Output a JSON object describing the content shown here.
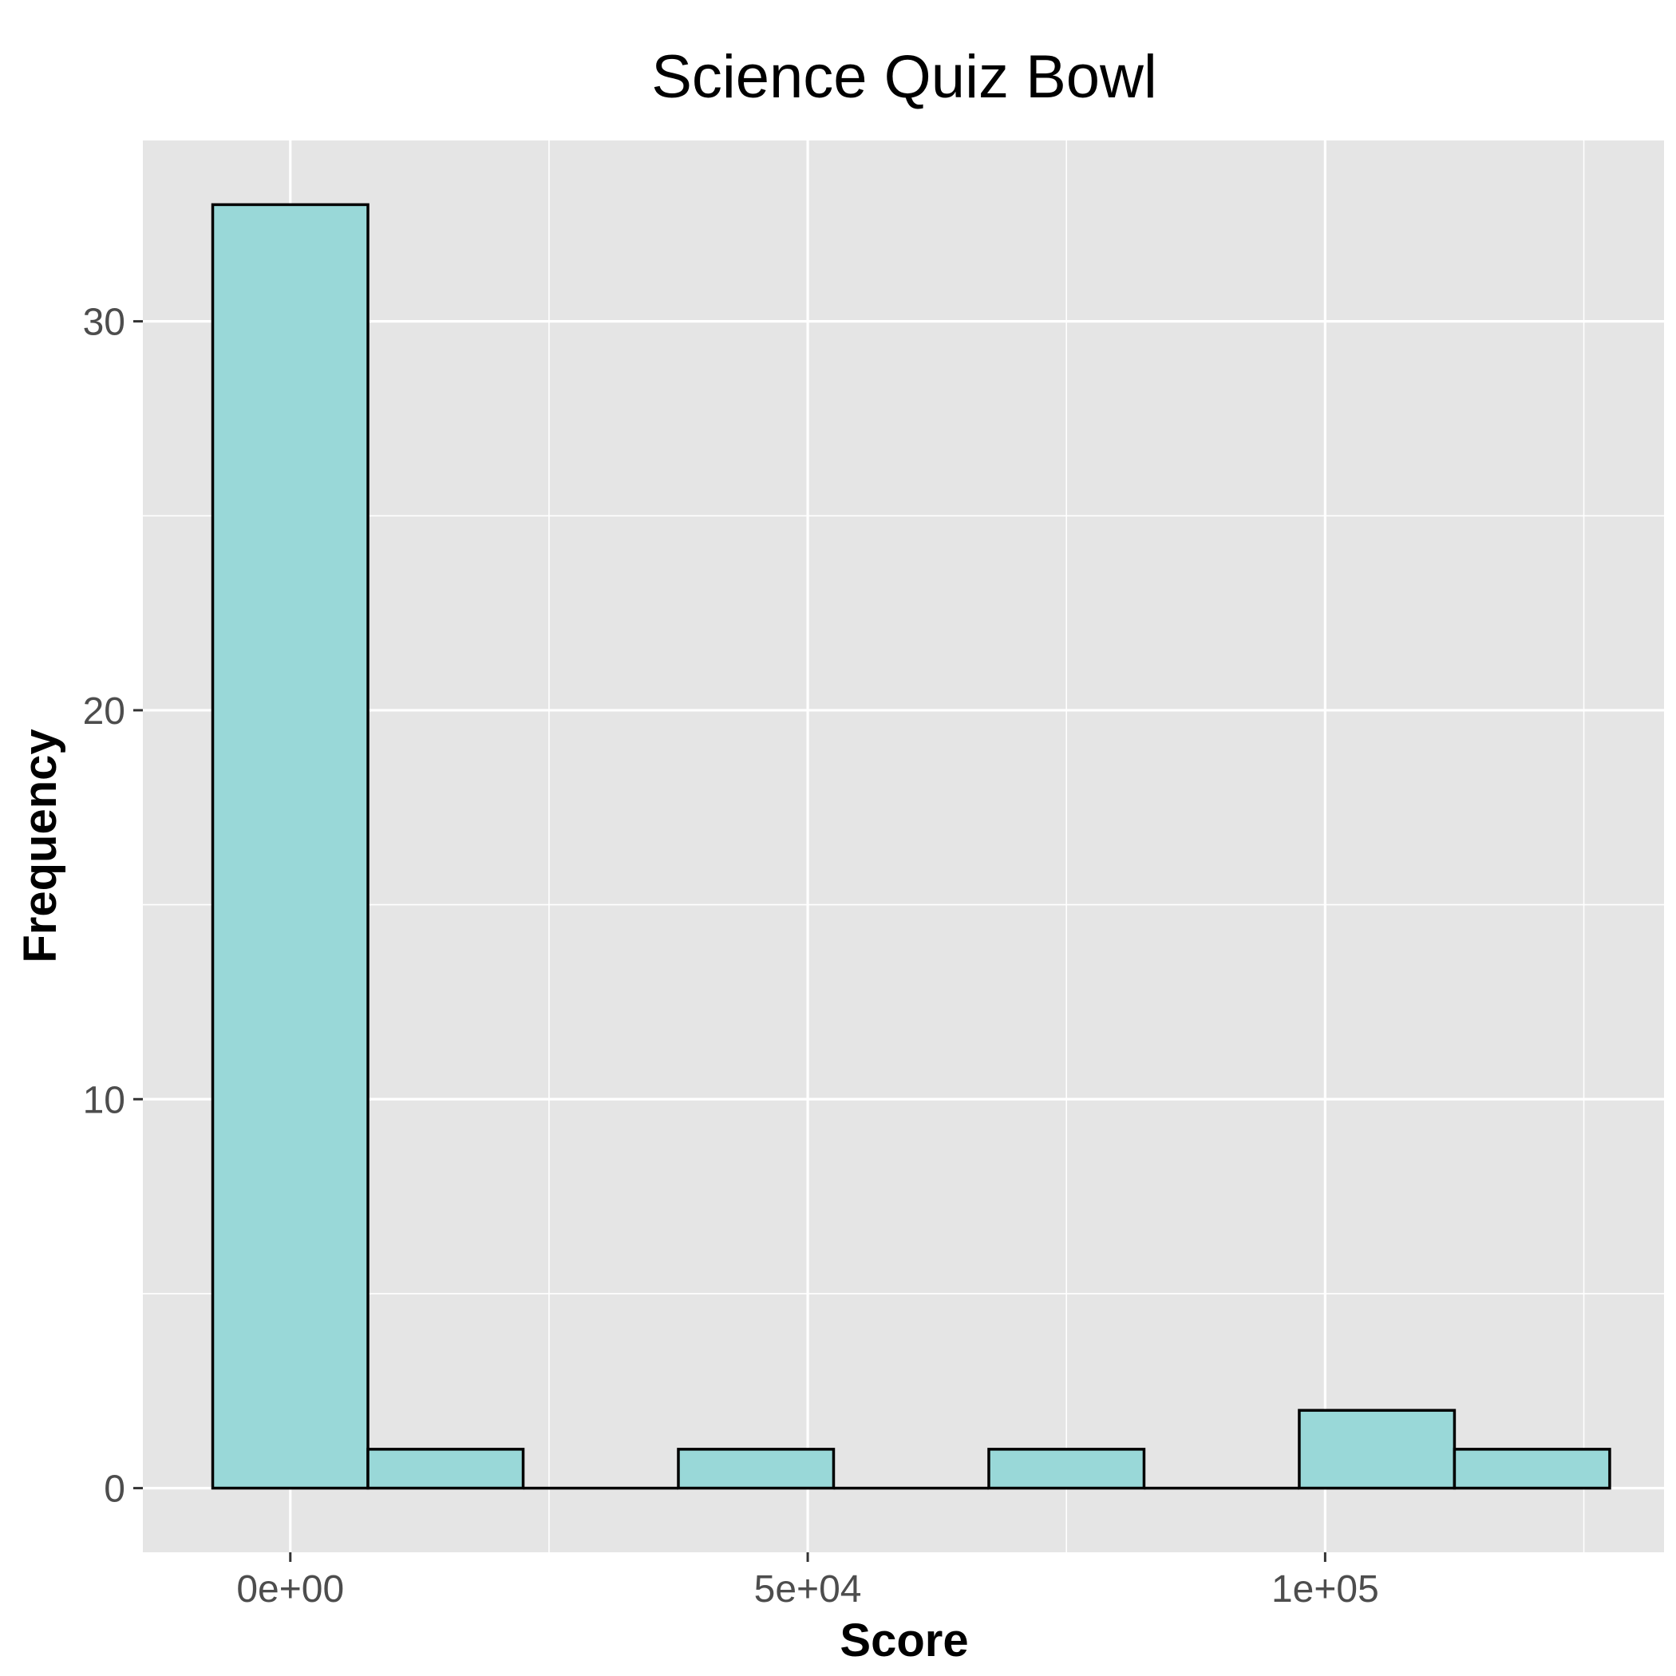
{
  "chart_data": {
    "type": "histogram",
    "title": "Science Quiz Bowl",
    "xlabel": "Score",
    "ylabel": "Frequency",
    "x_tick_labels": [
      "0e+00",
      "5e+04",
      "1e+05"
    ],
    "x_ticks": [
      0,
      50000,
      100000
    ],
    "y_tick_labels": [
      "0",
      "10",
      "20",
      "30"
    ],
    "y_ticks": [
      0,
      10,
      20,
      30
    ],
    "xlim": [
      -14250,
      132750
    ],
    "ylim": [
      -1.65,
      34.65
    ],
    "bin_width": 15000,
    "bins": [
      {
        "x_start": -7500,
        "x_end": 7500,
        "count": 33
      },
      {
        "x_start": 7500,
        "x_end": 22500,
        "count": 1
      },
      {
        "x_start": 22500,
        "x_end": 37500,
        "count": 0
      },
      {
        "x_start": 37500,
        "x_end": 52500,
        "count": 1
      },
      {
        "x_start": 52500,
        "x_end": 67500,
        "count": 0
      },
      {
        "x_start": 67500,
        "x_end": 82500,
        "count": 1
      },
      {
        "x_start": 82500,
        "x_end": 97500,
        "count": 0
      },
      {
        "x_start": 97500,
        "x_end": 112500,
        "count": 2
      },
      {
        "x_start": 112500,
        "x_end": 127500,
        "count": 1
      }
    ],
    "grid": true,
    "colors": {
      "bar_fill": "#99d8d8",
      "bar_outline": "#000000",
      "panel_background": "#e5e5e5",
      "grid_line": "#ffffff"
    }
  }
}
